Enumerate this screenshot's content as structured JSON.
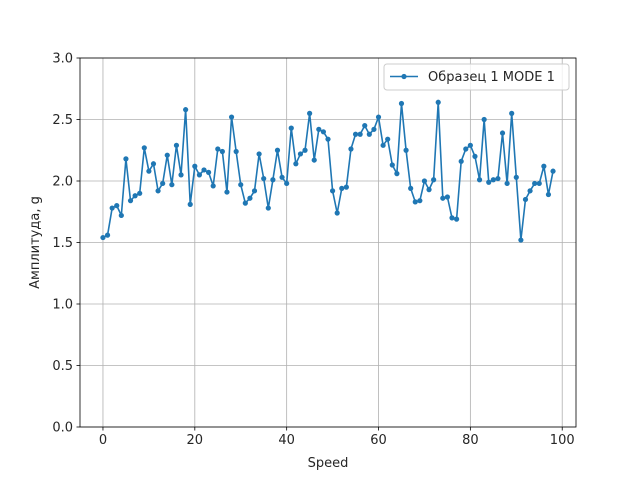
{
  "chart_data": {
    "type": "line",
    "xlabel": "Speed",
    "ylabel": "Амплитуда, g",
    "xlim": [
      -5,
      103
    ],
    "ylim": [
      0.0,
      3.0
    ],
    "xticks": [
      0,
      20,
      40,
      60,
      80,
      100
    ],
    "yticks": [
      0.0,
      0.5,
      1.0,
      1.5,
      2.0,
      2.5,
      3.0
    ],
    "xtick_labels": [
      "0",
      "20",
      "40",
      "60",
      "80",
      "100"
    ],
    "ytick_labels": [
      "0.0",
      "0.5",
      "1.0",
      "1.5",
      "2.0",
      "2.5",
      "3.0"
    ],
    "grid": true,
    "legend_position": "top-right",
    "series": [
      {
        "name": "Образец 1 MODE 1",
        "color": "#1f77b4",
        "marker": "circle",
        "x": [
          0,
          1,
          2,
          3,
          4,
          5,
          6,
          7,
          8,
          9,
          10,
          11,
          12,
          13,
          14,
          15,
          16,
          17,
          18,
          19,
          20,
          21,
          22,
          23,
          24,
          25,
          26,
          27,
          28,
          29,
          30,
          31,
          32,
          33,
          34,
          35,
          36,
          37,
          38,
          39,
          40,
          41,
          42,
          43,
          44,
          45,
          46,
          47,
          48,
          49,
          50,
          51,
          52,
          53,
          54,
          55,
          56,
          57,
          58,
          59,
          60,
          61,
          62,
          63,
          64,
          65,
          66,
          67,
          68,
          69,
          70,
          71,
          72,
          73,
          74,
          75,
          76,
          77,
          78,
          79,
          80,
          81,
          82,
          83,
          84,
          85,
          86,
          87,
          88,
          89,
          90,
          91,
          92,
          93,
          94,
          95,
          96,
          97,
          98
        ],
        "y": [
          1.54,
          1.56,
          1.78,
          1.8,
          1.72,
          2.18,
          1.84,
          1.88,
          1.9,
          2.27,
          2.08,
          2.14,
          1.92,
          1.98,
          2.21,
          1.97,
          2.29,
          2.05,
          2.58,
          1.81,
          2.12,
          2.05,
          2.09,
          2.07,
          1.96,
          2.26,
          2.24,
          1.91,
          2.52,
          2.24,
          1.97,
          1.82,
          1.86,
          1.92,
          2.22,
          2.02,
          1.78,
          2.01,
          2.25,
          2.03,
          1.98,
          2.43,
          2.14,
          2.22,
          2.25,
          2.55,
          2.17,
          2.42,
          2.4,
          2.34,
          1.92,
          1.74,
          1.94,
          1.95,
          2.26,
          2.38,
          2.38,
          2.45,
          2.38,
          2.42,
          2.52,
          2.29,
          2.34,
          2.13,
          2.06,
          2.63,
          2.25,
          1.94,
          1.83,
          1.84,
          2.0,
          1.93,
          2.01,
          2.64,
          1.86,
          1.87,
          1.7,
          1.69,
          2.16,
          2.26,
          2.29,
          2.2,
          2.01,
          2.5,
          1.99,
          2.01,
          2.02,
          2.39,
          1.98,
          2.55,
          2.03,
          1.52,
          1.85,
          1.92,
          1.98,
          1.98,
          2.12,
          1.89,
          2.08
        ]
      }
    ]
  }
}
